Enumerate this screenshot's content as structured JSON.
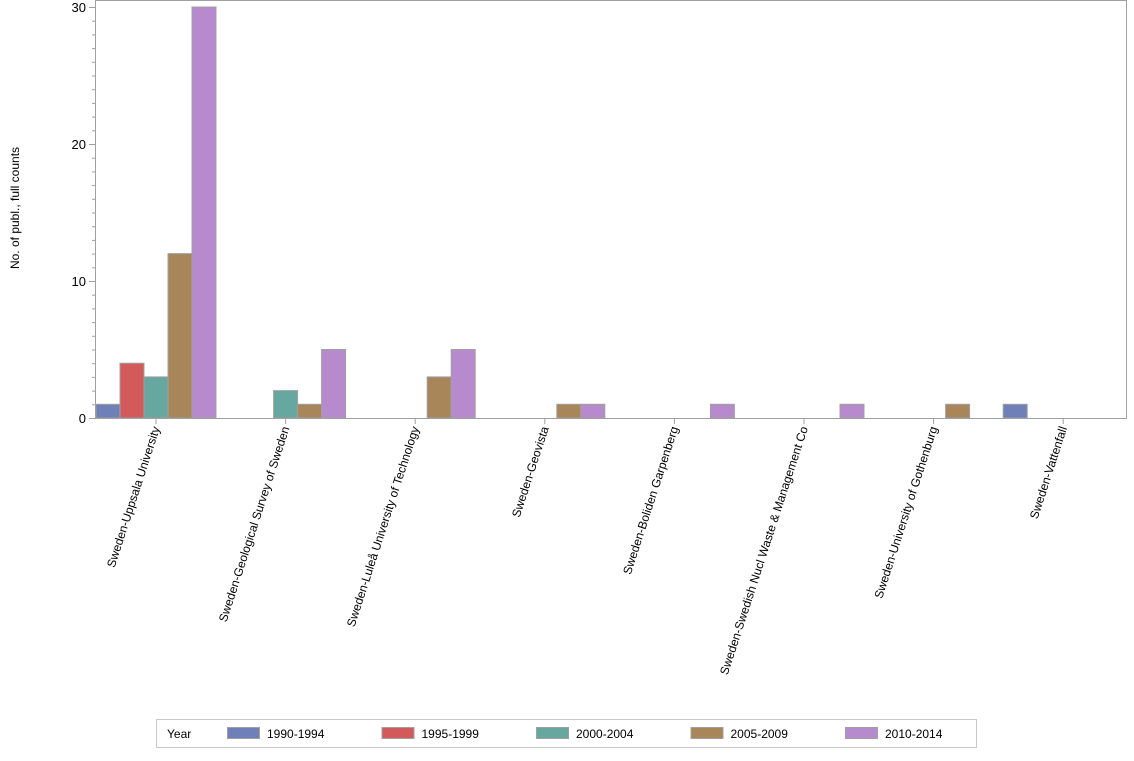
{
  "chart_data": {
    "type": "bar",
    "title": "",
    "xlabel": "",
    "ylabel": "No. of publ., full counts",
    "ylim": [
      0,
      30
    ],
    "yticks": [
      0,
      10,
      20,
      30
    ],
    "grid": false,
    "legend_position": "bottom",
    "legend_title": "Year",
    "categories": [
      "Sweden-Uppsala University",
      "Sweden-Geological Survey of Sweden",
      "Sweden-Luleå University of Technology",
      "Sweden-Geovista",
      "Sweden-Boliden Garpenberg",
      "Sweden-Swedish Nucl Waste & Management Co",
      "Sweden-University of Gothenburg",
      "Sweden-Vattenfall"
    ],
    "series": [
      {
        "name": "1990-1994",
        "color": "#6f7fb7",
        "values": [
          1,
          0,
          0,
          0,
          0,
          0,
          0,
          1
        ]
      },
      {
        "name": "1995-1999",
        "color": "#d25a5a",
        "values": [
          4,
          0,
          0,
          0,
          0,
          0,
          0,
          0
        ]
      },
      {
        "name": "2000-2004",
        "color": "#66a8a0",
        "values": [
          3,
          2,
          0,
          0,
          0,
          0,
          0,
          0
        ]
      },
      {
        "name": "2005-2009",
        "color": "#a8865a",
        "values": [
          12,
          1,
          3,
          1,
          0,
          0,
          1,
          0
        ]
      },
      {
        "name": "2010-2014",
        "color": "#b68acd",
        "values": [
          30,
          5,
          5,
          1,
          1,
          1,
          0,
          0
        ]
      }
    ]
  }
}
